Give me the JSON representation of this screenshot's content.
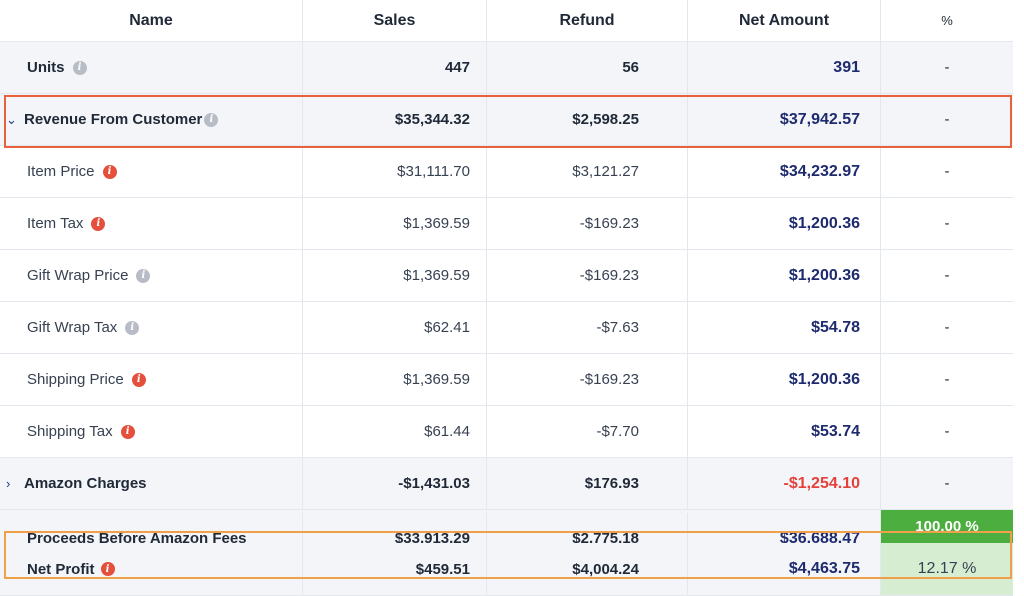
{
  "headers": {
    "name": "Name",
    "sales": "Sales",
    "refund": "Refund",
    "net": "Net Amount",
    "pct": "%"
  },
  "rows": [
    {
      "name": "Units",
      "sales": "447",
      "refund": "56",
      "net": "391",
      "pct": "-"
    },
    {
      "name": "Revenue From Customer",
      "sales": "$35,344.32",
      "refund": "$2,598.25",
      "net": "$37,942.57",
      "pct": "-"
    },
    {
      "name": "Item Price",
      "sales": "$31,111.70",
      "refund": "$3,121.27",
      "net": "$34,232.97",
      "pct": "-"
    },
    {
      "name": "Item Tax",
      "sales": "$1,369.59",
      "refund": "-$169.23",
      "net": "$1,200.36",
      "pct": "-"
    },
    {
      "name": "Gift Wrap Price",
      "sales": "$1,369.59",
      "refund": "-$169.23",
      "net": "$1,200.36",
      "pct": "-"
    },
    {
      "name": "Gift Wrap Tax",
      "sales": "$62.41",
      "refund": "-$7.63",
      "net": "$54.78",
      "pct": "-"
    },
    {
      "name": "Shipping Price",
      "sales": "$1,369.59",
      "refund": "-$169.23",
      "net": "$1,200.36",
      "pct": "-"
    },
    {
      "name": "Shipping Tax",
      "sales": "$61.44",
      "refund": "-$7.70",
      "net": "$53.74",
      "pct": "-"
    },
    {
      "name": "Amazon Charges",
      "sales": "-$1,431.03",
      "refund": "$176.93",
      "net": "-$1,254.10",
      "pct": "-"
    },
    {
      "name": "Proceeds Before Amazon Fees",
      "sales": "$33,913.29",
      "refund": "$2,775.18",
      "net": "$36,688.47",
      "pct": "100.00 %"
    },
    {
      "name": "Net Profit",
      "sales": "$459.51",
      "refund": "$4,004.24",
      "net": "$4,463.75",
      "pct": "12.17 %"
    }
  ],
  "icons": {
    "expanded_chevron": "chevron-down-icon",
    "collapsed_chevron": "chevron-right-icon",
    "info_glyph": "i"
  },
  "colors": {
    "net_amount": "#1e2a6e",
    "negative": "#e5403a",
    "pct_full": "#4cae3e",
    "pct_partial": "#d6edd1",
    "highlight_red": "#e8603c",
    "highlight_orange": "#f0a04b"
  }
}
